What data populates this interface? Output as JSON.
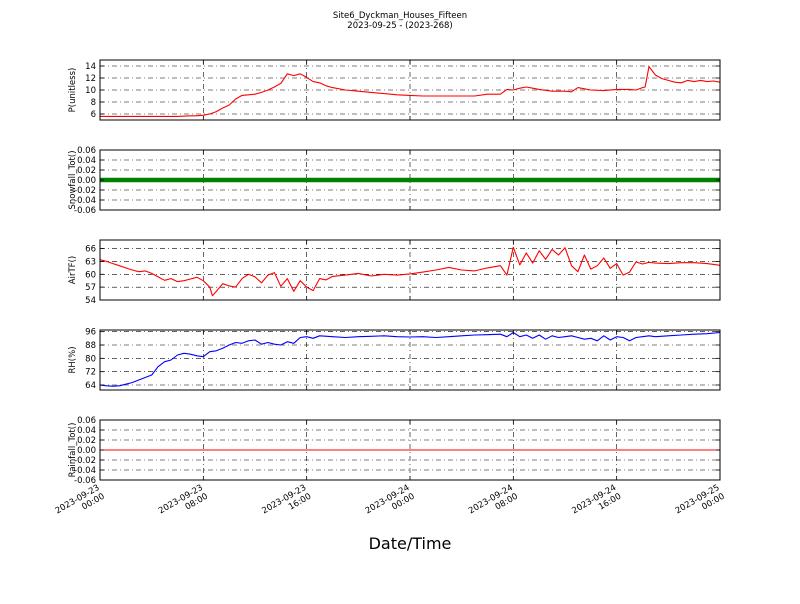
{
  "title": "Site6_Dyckman_Houses_Fifteen",
  "subtitle": "2023-09-25 - (2023-268)",
  "xlabel": "Date/Time",
  "x_ticks": [
    {
      "line1": "2023-09-23",
      "line2": "00:00",
      "hours": 0
    },
    {
      "line1": "2023-09-23",
      "line2": "08:00",
      "hours": 8
    },
    {
      "line1": "2023-09-23",
      "line2": "16:00",
      "hours": 16
    },
    {
      "line1": "2023-09-24",
      "line2": "00:00",
      "hours": 24
    },
    {
      "line1": "2023-09-24",
      "line2": "08:00",
      "hours": 32
    },
    {
      "line1": "2023-09-24",
      "line2": "16:00",
      "hours": 40
    },
    {
      "line1": "2023-09-25",
      "line2": "00:00",
      "hours": 48
    }
  ],
  "chart_data": [
    {
      "type": "line",
      "ylabel": "P(unitless)",
      "color": "#ff0000",
      "ylim": [
        5,
        15
      ],
      "yticks": [
        6,
        8,
        10,
        12,
        14
      ],
      "series": [
        {
          "x": [
            0,
            1,
            2,
            3,
            4,
            5,
            6,
            7,
            7.5,
            8,
            8.5,
            9,
            9.5,
            10,
            10.5,
            11,
            11.5,
            12,
            12.5,
            13,
            13.5,
            14,
            14.5,
            15,
            15.5,
            16,
            16.5,
            17,
            17.5,
            18,
            19,
            20,
            21,
            22,
            23,
            24,
            25,
            26,
            27,
            28,
            29,
            30,
            31,
            31.5,
            32,
            32.5,
            33,
            33.5,
            34,
            35,
            36,
            36.5,
            37,
            37.5,
            38,
            39,
            40,
            41,
            41.5,
            42,
            42.2,
            42.5,
            43,
            43.5,
            44,
            44.5,
            45,
            45.5,
            46,
            46.5,
            47,
            47.5,
            48
          ],
          "y": [
            5.6,
            5.6,
            5.6,
            5.6,
            5.6,
            5.6,
            5.6,
            5.7,
            5.7,
            5.8,
            6.0,
            6.4,
            7.0,
            7.5,
            8.5,
            9.1,
            9.2,
            9.3,
            9.6,
            10.0,
            10.5,
            11.1,
            12.7,
            12.4,
            12.7,
            12.1,
            11.4,
            11.2,
            10.7,
            10.4,
            10.0,
            9.8,
            9.6,
            9.4,
            9.2,
            9.1,
            9.0,
            9.0,
            9.0,
            9.0,
            9.0,
            9.3,
            9.3,
            10.1,
            10.0,
            10.3,
            10.5,
            10.3,
            10.1,
            9.8,
            9.8,
            9.7,
            10.4,
            10.2,
            10.0,
            9.9,
            10.1,
            10.1,
            10.0,
            10.4,
            10.5,
            13.9,
            12.5,
            11.9,
            11.6,
            11.3,
            11.2,
            11.6,
            11.4,
            11.6,
            11.4,
            11.5,
            11.3
          ]
        }
      ]
    },
    {
      "type": "line",
      "ylabel": "Snowfall_Tot()",
      "color": "#008000",
      "ylim": [
        -0.06,
        0.06
      ],
      "yticks": [
        -0.06,
        -0.04,
        -0.02,
        0.0,
        0.02,
        0.04,
        0.06
      ],
      "series": [
        {
          "x": [
            0,
            48
          ],
          "y": [
            0,
            0
          ]
        }
      ]
    },
    {
      "type": "line",
      "ylabel": "AirTF()",
      "color": "#ff0000",
      "ylim": [
        54,
        68
      ],
      "yticks": [
        54,
        57,
        60,
        63,
        66
      ],
      "series": [
        {
          "x": [
            0,
            0.5,
            1,
            1.5,
            2,
            2.5,
            3,
            3.5,
            4,
            4.5,
            5,
            5.5,
            6,
            6.5,
            7,
            7.5,
            8,
            8.5,
            8.7,
            9,
            9.5,
            10,
            10.5,
            11,
            11.5,
            12,
            12.5,
            13,
            13.5,
            14,
            14.5,
            15,
            15.5,
            16,
            16.5,
            17,
            17.5,
            18,
            19,
            20,
            21,
            22,
            23,
            24,
            25,
            26,
            27,
            28,
            29,
            30,
            31,
            31.5,
            32,
            32.5,
            33,
            33.5,
            34,
            34.5,
            35,
            35.5,
            36,
            36.5,
            37,
            37.5,
            38,
            38.5,
            39,
            39.5,
            40,
            40.5,
            41,
            41.5,
            42,
            42.5,
            43,
            44,
            45,
            46,
            47,
            48
          ],
          "y": [
            63.4,
            63.0,
            62.5,
            62.0,
            61.5,
            61.0,
            60.6,
            60.8,
            60.2,
            59.4,
            58.6,
            59.0,
            58.3,
            58.5,
            58.9,
            59.3,
            58.5,
            57.0,
            55.0,
            56.0,
            57.8,
            57.3,
            57.0,
            59.0,
            60.0,
            59.4,
            58.0,
            59.8,
            60.4,
            57.2,
            59.0,
            56.0,
            58.5,
            57.0,
            56.2,
            59.0,
            58.7,
            59.5,
            59.8,
            60.2,
            59.6,
            60.0,
            59.8,
            60.1,
            60.5,
            61.0,
            61.6,
            61.0,
            60.8,
            61.5,
            62.0,
            59.8,
            66.3,
            62.2,
            65.0,
            62.6,
            65.5,
            63.5,
            65.8,
            64.5,
            66.2,
            62.0,
            60.6,
            64.5,
            61.2,
            62.0,
            63.8,
            61.4,
            62.5,
            59.8,
            60.5,
            62.9,
            62.4,
            62.8,
            62.6,
            62.5,
            62.7,
            62.7,
            62.5,
            62.1
          ]
        }
      ]
    },
    {
      "type": "line",
      "ylabel": "RH(%)",
      "color": "#0000ff",
      "ylim": [
        61,
        97
      ],
      "yticks": [
        64,
        72,
        80,
        88,
        96
      ],
      "series": [
        {
          "x": [
            0,
            0.5,
            1,
            1.5,
            2,
            2.5,
            3,
            3.5,
            4,
            4.5,
            5,
            5.5,
            6,
            6.5,
            7,
            7.5,
            8,
            8.5,
            9,
            9.5,
            10,
            10.5,
            11,
            11.5,
            12,
            12.5,
            13,
            13.5,
            14,
            14.5,
            15,
            15.5,
            16,
            16.5,
            17,
            18,
            19,
            20,
            21,
            22,
            23,
            24,
            25,
            26,
            27,
            28,
            29,
            30,
            31,
            31.5,
            32,
            32.5,
            33,
            33.5,
            34,
            34.5,
            35,
            35.5,
            36,
            36.5,
            37,
            37.5,
            38,
            38.5,
            39,
            39.5,
            40,
            40.5,
            41,
            41.5,
            42,
            42.5,
            43,
            44,
            45,
            46,
            47,
            48
          ],
          "y": [
            64.0,
            63.5,
            63.3,
            63.5,
            64.5,
            65.5,
            67.0,
            68.5,
            70.0,
            75.0,
            78.0,
            79.0,
            82.0,
            83.0,
            82.5,
            81.5,
            81.0,
            84.0,
            84.5,
            86.0,
            88.0,
            89.5,
            89.0,
            90.5,
            91.0,
            88.5,
            89.5,
            88.5,
            88.0,
            90.0,
            89.0,
            92.5,
            93.0,
            92.0,
            93.5,
            93.0,
            92.5,
            93.0,
            93.2,
            93.5,
            93.0,
            92.8,
            93.0,
            92.5,
            93.0,
            93.5,
            94.0,
            94.2,
            94.5,
            93.0,
            95.5,
            93.0,
            94.0,
            92.0,
            94.0,
            91.5,
            93.5,
            92.5,
            93.0,
            93.5,
            92.5,
            91.5,
            92.0,
            90.5,
            93.5,
            91.0,
            93.0,
            92.5,
            90.5,
            92.5,
            93.0,
            93.5,
            93.0,
            93.5,
            94.0,
            94.5,
            94.8,
            95.5
          ]
        }
      ]
    },
    {
      "type": "line",
      "ylabel": "Rainfall_Tot()",
      "color": "#ff0000",
      "ylim": [
        -0.06,
        0.06
      ],
      "yticks": [
        -0.06,
        -0.04,
        -0.02,
        0.0,
        0.02,
        0.04,
        0.06
      ],
      "series": [
        {
          "x": [
            0,
            48
          ],
          "y": [
            0,
            0
          ]
        }
      ]
    }
  ]
}
